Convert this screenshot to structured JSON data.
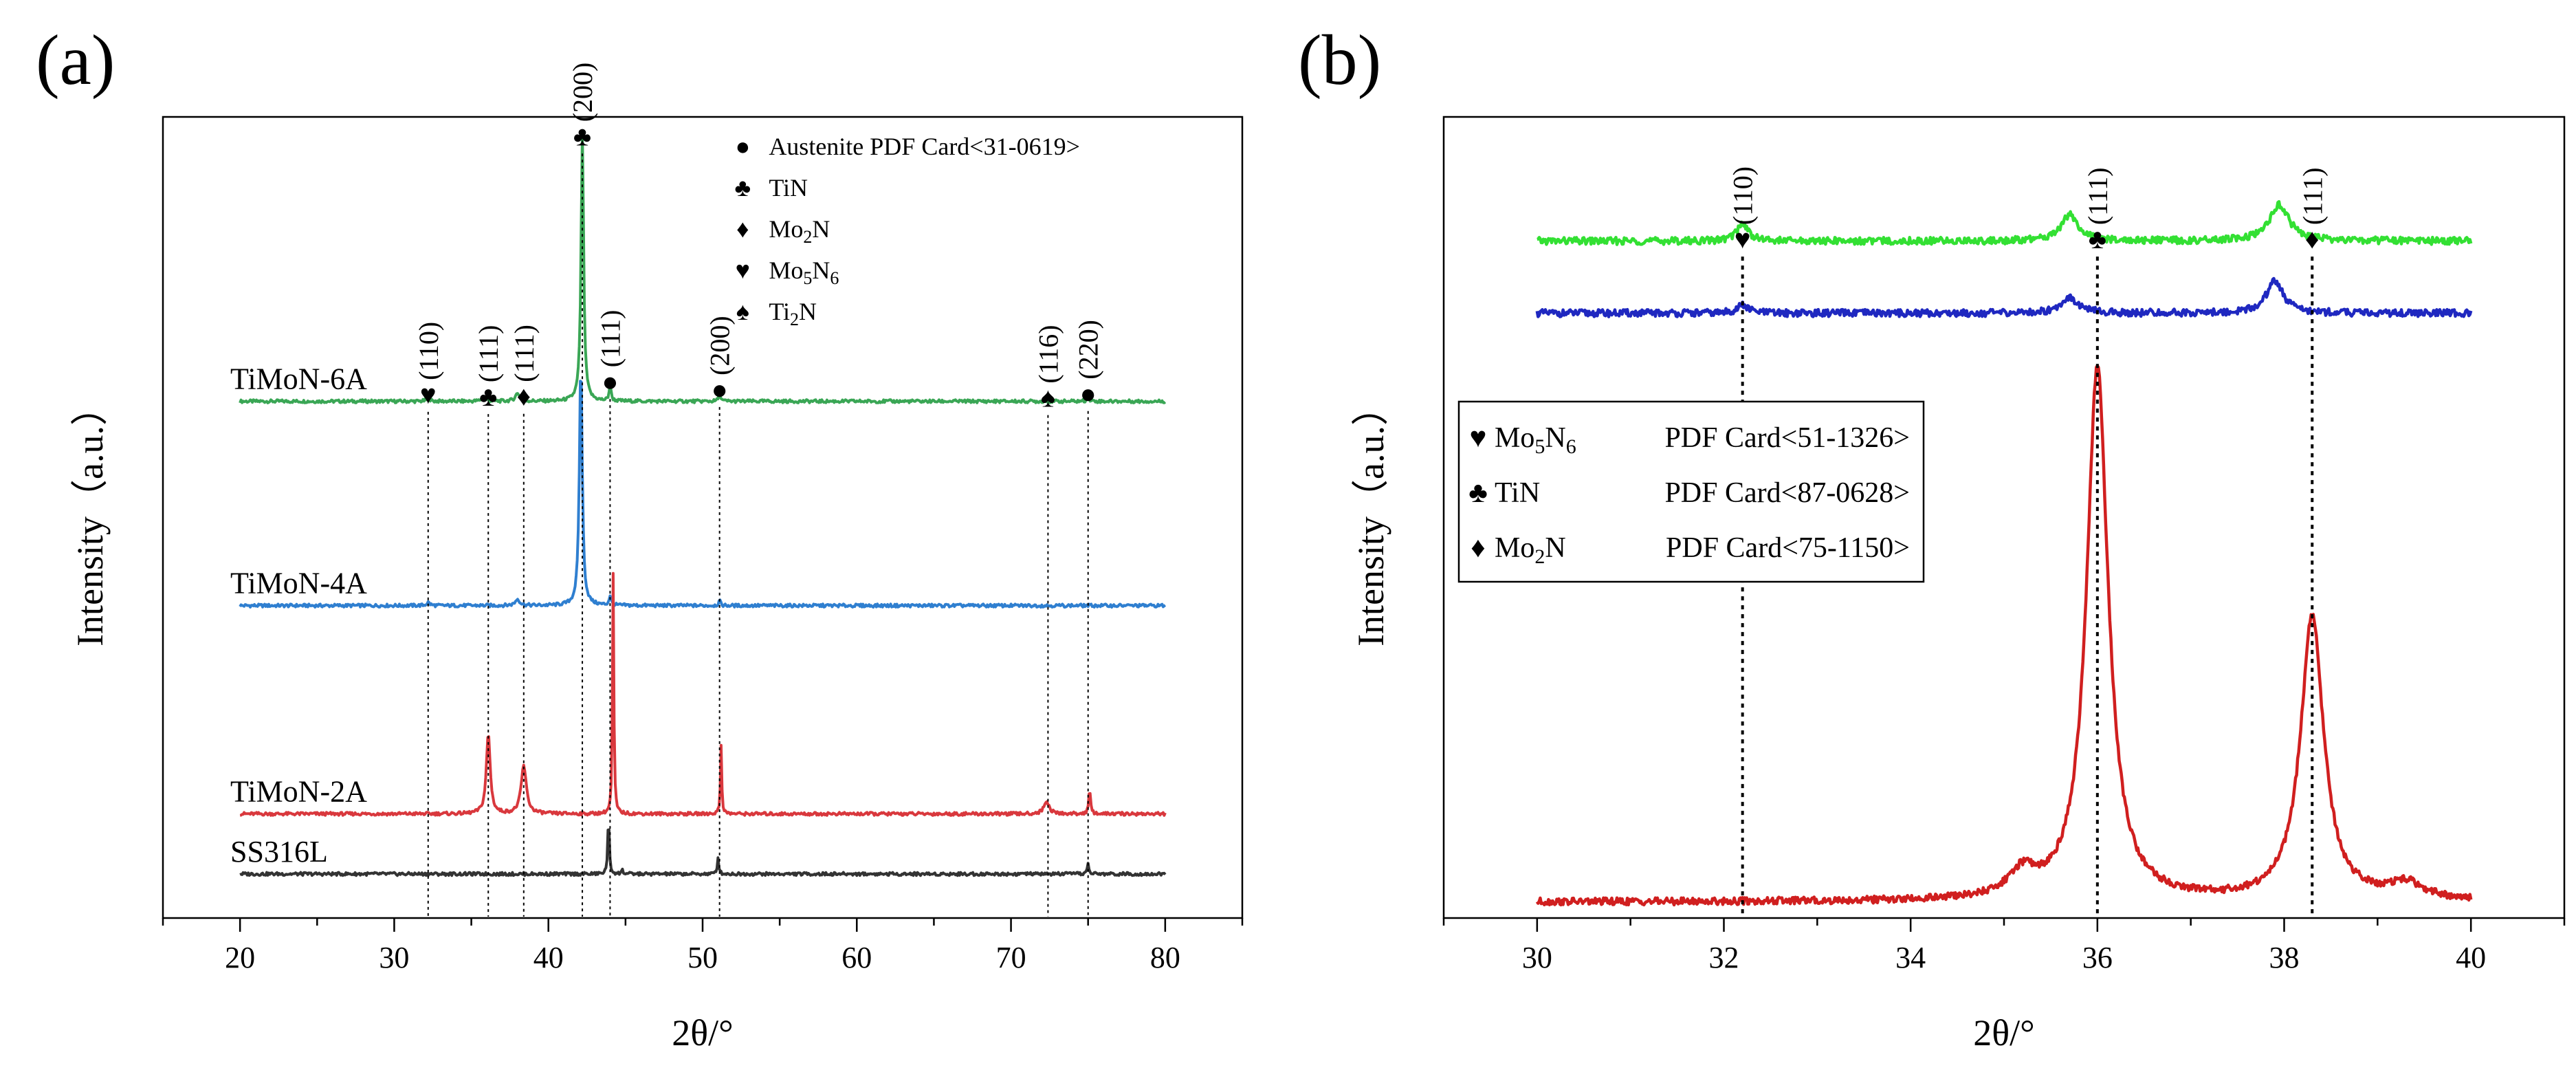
{
  "chart_data": [
    {
      "type": "line",
      "panel_label": "(a)",
      "xlabel": "2θ/°",
      "ylabel": "Intensity（a.u.）",
      "xlim": [
        15,
        85
      ],
      "xticks": [
        20,
        30,
        40,
        50,
        60,
        70,
        80
      ],
      "x_range": [
        20,
        80
      ],
      "series": [
        {
          "name": "TiMoN-6A",
          "color": "#3aa655",
          "offset": 0.645,
          "peaks": [
            [
              32.2,
              0.004,
              0.25
            ],
            [
              35.8,
              0.006,
              0.3
            ],
            [
              38.0,
              0.01,
              0.35
            ],
            [
              42.2,
              0.335,
              0.2
            ],
            [
              44.0,
              0.02,
              0.15
            ],
            [
              51.1,
              0.01,
              0.15
            ],
            [
              75.0,
              0.005,
              0.2
            ]
          ]
        },
        {
          "name": "TiMoN-4A",
          "color": "#2f7fd0",
          "offset": 0.39,
          "peaks": [
            [
              32.2,
              0.004,
              0.25
            ],
            [
              38.0,
              0.008,
              0.35
            ],
            [
              42.1,
              0.305,
              0.22
            ],
            [
              44.0,
              0.012,
              0.15
            ],
            [
              51.1,
              0.006,
              0.15
            ]
          ]
        },
        {
          "name": "TiMoN-2A",
          "color": "#d9383d",
          "offset": 0.13,
          "peaks": [
            [
              36.1,
              0.1,
              0.3
            ],
            [
              38.4,
              0.06,
              0.4
            ],
            [
              44.2,
              0.3,
              0.1
            ],
            [
              51.2,
              0.085,
              0.1
            ],
            [
              72.3,
              0.016,
              0.4
            ],
            [
              75.1,
              0.028,
              0.15
            ]
          ]
        },
        {
          "name": "SS316L",
          "color": "#333333",
          "offset": 0.055,
          "peaks": [
            [
              43.9,
              0.07,
              0.12
            ],
            [
              44.8,
              0.006,
              0.1
            ],
            [
              51.0,
              0.02,
              0.12
            ],
            [
              75.0,
              0.012,
              0.15
            ]
          ]
        }
      ],
      "peak_markers": [
        {
          "x": 32.2,
          "hkl": "(110)",
          "symbol": "♥"
        },
        {
          "x": 36.1,
          "hkl": "(111)",
          "symbol": "♣"
        },
        {
          "x": 38.4,
          "hkl": "(111)",
          "symbol": "♦"
        },
        {
          "x": 42.2,
          "hkl": "(200)",
          "symbol": "♣"
        },
        {
          "x": 44.0,
          "hkl": "(111)",
          "symbol": "●"
        },
        {
          "x": 51.1,
          "hkl": "(200)",
          "symbol": "●"
        },
        {
          "x": 72.4,
          "hkl": "(116)",
          "symbol": "♠"
        },
        {
          "x": 75.0,
          "hkl": "(220)",
          "symbol": "●"
        }
      ],
      "legend": [
        {
          "symbol": "●",
          "text": "Austenite PDF Card<31-0619>"
        },
        {
          "symbol": "♣",
          "text": "TiN"
        },
        {
          "symbol": "♦",
          "text": "Mo2N",
          "main": "Mo",
          "sub": "2",
          "rest": "N"
        },
        {
          "symbol": "♥",
          "text": "Mo5N6",
          "main": "Mo",
          "sub": "5",
          "rest": "N",
          "sub2": "6"
        },
        {
          "symbol": "♠",
          "text": "Ti2N",
          "main": "Ti",
          "sub": "2",
          "rest": "N"
        }
      ]
    },
    {
      "type": "line",
      "panel_label": "(b)",
      "xlabel": "2θ/°",
      "ylabel": "Intensity（a.u.）",
      "xlim": [
        29,
        41
      ],
      "xticks": [
        30,
        32,
        34,
        36,
        38,
        40
      ],
      "x_range": [
        30,
        40
      ],
      "series": [
        {
          "name": "green",
          "color": "#33e033",
          "offset": 0.845,
          "peaks": [
            [
              32.2,
              0.022,
              0.15
            ],
            [
              35.7,
              0.033,
              0.22
            ],
            [
              37.95,
              0.045,
              0.25
            ]
          ]
        },
        {
          "name": "blue",
          "color": "#1f28c0",
          "offset": 0.755,
          "peaks": [
            [
              32.2,
              0.01,
              0.15
            ],
            [
              35.7,
              0.02,
              0.22
            ],
            [
              37.9,
              0.04,
              0.22
            ]
          ]
        },
        {
          "name": "red",
          "color": "#d01f1f",
          "offset": 0.02,
          "peaks": [
            [
              36.0,
              0.665,
              0.28
            ],
            [
              38.3,
              0.355,
              0.3
            ],
            [
              35.2,
              0.03,
              0.35
            ],
            [
              39.3,
              0.02,
              0.45
            ]
          ]
        }
      ],
      "peak_markers": [
        {
          "x": 32.2,
          "hkl": "(110)",
          "symbol": "♥"
        },
        {
          "x": 36.0,
          "hkl": "(111)",
          "symbol": "♣"
        },
        {
          "x": 38.3,
          "hkl": "(111)",
          "symbol": "♦"
        }
      ],
      "legend": [
        {
          "symbol": "♥",
          "text": "Mo5N6 PDF Card<51-1326>",
          "main": "Mo",
          "sub": "5",
          "rest": "N",
          "sub2": "6",
          "card": "PDF Card<51-1326>"
        },
        {
          "symbol": "♣",
          "text": "TiN PDF Card<87-0628>",
          "main": "TiN",
          "card": "PDF Card<87-0628>"
        },
        {
          "symbol": "♦",
          "text": "Mo2N PDF Card<75-1150>",
          "main": "Mo",
          "sub": "2",
          "rest": "N",
          "card": "PDF Card<75-1150>"
        }
      ]
    }
  ]
}
